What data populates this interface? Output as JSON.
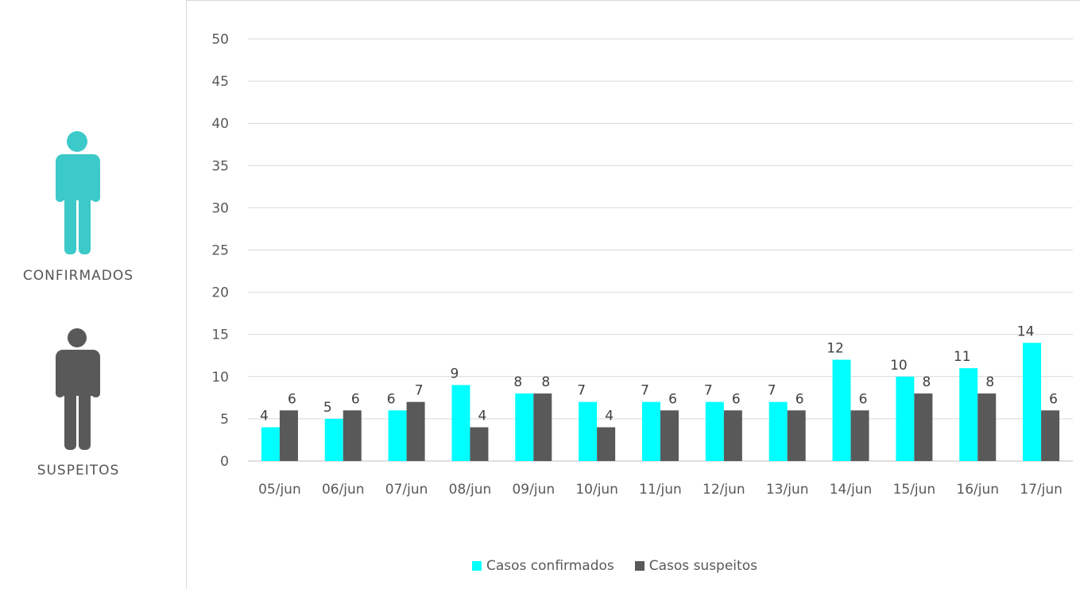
{
  "left_panel": {
    "confirmed_label": "CONFIRMADOS",
    "suspected_label": "SUSPEITOS",
    "confirmed_icon": "person-icon",
    "suspected_icon": "person-icon",
    "confirmed_color": "#3cc9c9",
    "suspected_color": "#595959"
  },
  "chart_data": {
    "type": "bar",
    "categories": [
      "05/jun",
      "06/jun",
      "07/jun",
      "08/jun",
      "09/jun",
      "10/jun",
      "11/jun",
      "12/jun",
      "13/jun",
      "14/jun",
      "15/jun",
      "16/jun",
      "17/jun"
    ],
    "series": [
      {
        "name": "Casos confirmados",
        "color": "#00ffff",
        "values": [
          4,
          5,
          6,
          9,
          8,
          7,
          7,
          7,
          7,
          12,
          10,
          11,
          14
        ]
      },
      {
        "name": "Casos suspeitos",
        "color": "#595959",
        "values": [
          6,
          6,
          7,
          4,
          8,
          4,
          6,
          6,
          6,
          6,
          8,
          8,
          6
        ]
      }
    ],
    "ylim": [
      0,
      50
    ],
    "yticks": [
      0,
      5,
      10,
      15,
      20,
      25,
      30,
      35,
      40,
      45,
      50
    ],
    "grid": true,
    "legend": "bottom",
    "data_labels": true
  }
}
